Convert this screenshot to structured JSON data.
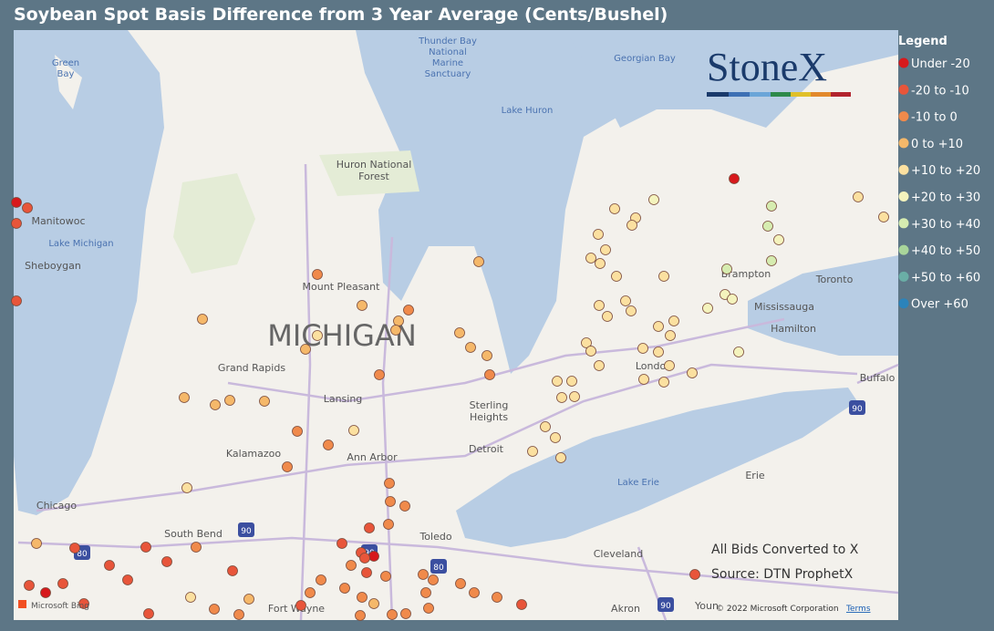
{
  "header": {
    "title": "Soybean Spot Basis Difference from 3 Year Average (Cents/Bushel)"
  },
  "legend": {
    "title": "Legend",
    "items": [
      {
        "label": "Under -20",
        "color": "#d7191c"
      },
      {
        "label": "-20 to -10",
        "color": "#e8553a"
      },
      {
        "label": "-10 to 0",
        "color": "#f08a4b"
      },
      {
        "label": "0 to +10",
        "color": "#f5b86a"
      },
      {
        "label": "+10 to +20",
        "color": "#fbe0a0"
      },
      {
        "label": "+20 to +30",
        "color": "#f4f3bd"
      },
      {
        "label": "+30 to +40",
        "color": "#d6ecb0"
      },
      {
        "label": "+40 to +50",
        "color": "#a9d59a"
      },
      {
        "label": "+50 to +60",
        "color": "#6aaea6"
      },
      {
        "label": "Over +60",
        "color": "#2b83ba"
      }
    ]
  },
  "logo": {
    "text": "StoneX"
  },
  "map": {
    "labels": [
      "Thunder Bay",
      "National",
      "Marine",
      "Sanctuary",
      "Georgian Bay",
      "Lake Huron",
      "Huron National",
      "Forest",
      "Green",
      "Bay",
      "Manitowoc",
      "Lake Michigan",
      "Sheboygan",
      "Mount Pleasant",
      "MICHIGAN",
      "Grand Rapids",
      "Lansing",
      "Sterling",
      "Heights",
      "Kalamazoo",
      "Ann Arbor",
      "Detroit",
      "Chicago",
      "South Bend",
      "Toledo",
      "Fort Wayne",
      "Cleveland",
      "Akron",
      "Youn",
      "Lake Erie",
      "Erie",
      "Brampton",
      "Toronto",
      "Mississauga",
      "Hamilton",
      "London",
      "Buffalo"
    ],
    "shields": [
      "80",
      "90",
      "90",
      "80",
      "90",
      "90"
    ]
  },
  "notes": {
    "line1": "All Bids Converted to X",
    "line2": "Source: DTN ProphetX"
  },
  "footer": {
    "bing": "Microsoft Bing",
    "copyright": "© 2022 Microsoft Corporation",
    "terms": "Terms"
  }
}
